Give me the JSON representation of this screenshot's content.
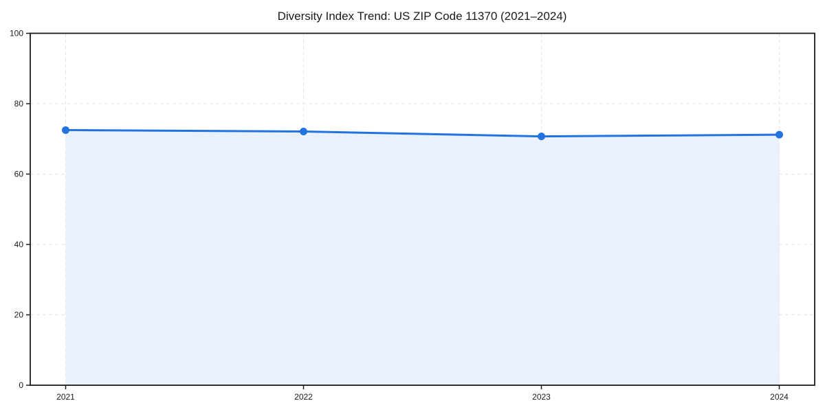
{
  "chart_data": {
    "type": "area",
    "title": "Diversity Index Trend: US ZIP Code 11370 (2021–2024)",
    "x_labels": [
      "2021",
      "2022",
      "2023",
      "2024"
    ],
    "series": [
      {
        "name": "Diversity Index",
        "values": [
          72.5,
          72.1,
          70.7,
          71.2
        ]
      }
    ],
    "xlabel": "",
    "ylabel": "",
    "ylim": [
      0,
      100
    ],
    "yticks": [
      0,
      20,
      40,
      60,
      80,
      100
    ],
    "grid": "dashed-both-axes",
    "legend_position": "none",
    "colors": {
      "line": "#2272e0",
      "marker": "#2272e0",
      "area_fill": "#e9f1fc",
      "gridline": "#e3e3e3",
      "axis": "#1a1a1a",
      "background": "#ffffff",
      "text": "#1a1a1a"
    }
  }
}
